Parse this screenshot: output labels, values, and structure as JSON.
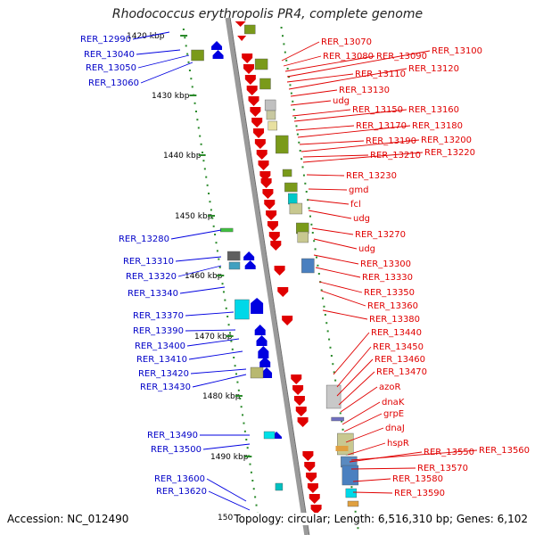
{
  "title": "Rhodococcus erythropolis PR4, complete genome",
  "footer": {
    "accession": "Accession: NC_012490",
    "topology": "Topology: circular; Length: 6,516,310 bp; Genes: 6,102"
  },
  "colors": {
    "forward_gene": "#0000e0",
    "reverse_gene": "#e00000",
    "label_forward": "#0000c8",
    "label_reverse": "#e00000",
    "ruler": "#2a8a2a",
    "backbone": "#9a9a9a"
  },
  "kbp_ticks": [
    "1420 kbp",
    "1430 kbp",
    "1440 kbp",
    "1450 kbp",
    "1460 kbp",
    "1470 kbp",
    "1480 kbp",
    "1490 kbp",
    "150"
  ],
  "left_labels": [
    "RER_12990",
    "RER_13040",
    "RER_13050",
    "RER_13060",
    "RER_13280",
    "RER_13310",
    "RER_13320",
    "RER_13340",
    "RER_13370",
    "RER_13390",
    "RER_13400",
    "RER_13410",
    "RER_13420",
    "RER_13430",
    "RER_13490",
    "RER_13500",
    "RER_13600",
    "RER_13620"
  ],
  "right_labels": [
    "RER_13070",
    "RER_13080",
    "RER_13090",
    "RER_13100",
    "RER_13110",
    "RER_13120",
    "RER_13130",
    "udg",
    "RER_13150",
    "RER_13160",
    "RER_13170",
    "RER_13180",
    "RER_13190",
    "RER_13200",
    "RER_13210",
    "RER_13220",
    "RER_13230",
    "gmd",
    "fcl",
    "udg",
    "RER_13270",
    "udg",
    "RER_13300",
    "RER_13330",
    "RER_13350",
    "RER_13360",
    "RER_13380",
    "RER_13440",
    "RER_13450",
    "RER_13460",
    "RER_13470",
    "azoR",
    "dnaK",
    "grpE",
    "dnaJ",
    "hspR",
    "RER_13550",
    "RER_13560",
    "RER_13570",
    "RER_13580",
    "RER_13590"
  ]
}
